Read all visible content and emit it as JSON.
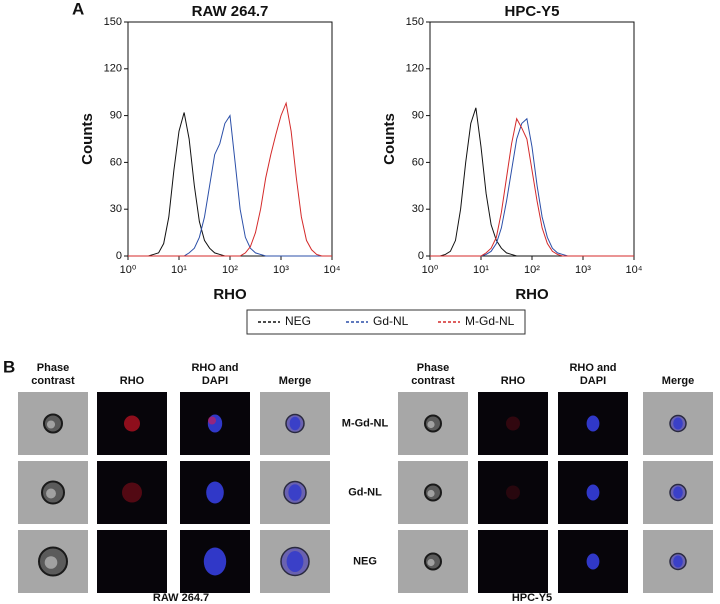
{
  "panel_labels": [
    "A",
    "B"
  ],
  "chart_data": [
    {
      "type": "line",
      "title": "RAW 264.7",
      "xlabel": "RHO",
      "ylabel": "Counts",
      "xscale": "log",
      "xlim": [
        1,
        10000
      ],
      "ylim": [
        0,
        150
      ],
      "xticks": [
        {
          "value": 1,
          "label": "10⁰"
        },
        {
          "value": 10,
          "label": "10¹"
        },
        {
          "value": 100,
          "label": "10²"
        },
        {
          "value": 1000,
          "label": "10³"
        },
        {
          "value": 10000,
          "label": "10⁴"
        }
      ],
      "yticks": [
        0,
        30,
        60,
        90,
        120,
        150
      ],
      "x": [
        1,
        1.26,
        1.58,
        2,
        2.51,
        3.16,
        3.98,
        5.01,
        6.31,
        7.94,
        10,
        12.6,
        15.8,
        20,
        25.1,
        31.6,
        39.8,
        50.1,
        63.1,
        79.4,
        100,
        126,
        158,
        200,
        251,
        316,
        398,
        501,
        631,
        794,
        1000,
        1260,
        1580,
        2000,
        2510,
        3160,
        3980,
        5010,
        6310,
        7940,
        10000
      ],
      "series": [
        {
          "name": "NEG",
          "color": "#111111",
          "values": [
            0,
            0,
            0,
            0,
            0,
            1,
            2,
            8,
            25,
            55,
            80,
            92,
            75,
            45,
            22,
            10,
            5,
            2,
            1,
            0,
            0,
            0,
            0,
            0,
            0,
            0,
            0,
            0,
            0,
            0,
            0,
            0,
            0,
            0,
            0,
            0,
            0,
            0,
            0,
            0,
            0
          ]
        },
        {
          "name": "Gd-NL",
          "color": "#2b4fa8",
          "values": [
            0,
            0,
            0,
            0,
            0,
            0,
            0,
            0,
            0,
            0,
            0,
            0,
            2,
            5,
            12,
            25,
            45,
            65,
            72,
            85,
            90,
            60,
            30,
            12,
            5,
            2,
            1,
            0,
            0,
            0,
            0,
            0,
            0,
            0,
            0,
            0,
            0,
            0,
            0,
            0,
            0
          ]
        },
        {
          "name": "M-Gd-NL",
          "color": "#d42a2a",
          "values": [
            0,
            0,
            0,
            0,
            0,
            0,
            0,
            0,
            0,
            0,
            0,
            0,
            0,
            0,
            0,
            0,
            0,
            0,
            0,
            0,
            0,
            0,
            0,
            2,
            6,
            15,
            30,
            50,
            65,
            78,
            90,
            98,
            80,
            50,
            25,
            10,
            4,
            1,
            0,
            0,
            0
          ]
        }
      ]
    },
    {
      "type": "line",
      "title": "HPC-Y5",
      "xlabel": "RHO",
      "ylabel": "Counts",
      "xscale": "log",
      "xlim": [
        1,
        10000
      ],
      "ylim": [
        0,
        150
      ],
      "xticks": [
        {
          "value": 1,
          "label": "10⁰"
        },
        {
          "value": 10,
          "label": "10¹"
        },
        {
          "value": 100,
          "label": "10²"
        },
        {
          "value": 1000,
          "label": "10³"
        },
        {
          "value": 10000,
          "label": "10⁴"
        }
      ],
      "yticks": [
        0,
        30,
        60,
        90,
        120,
        150
      ],
      "x": [
        1,
        1.26,
        1.58,
        2,
        2.51,
        3.16,
        3.98,
        5.01,
        6.31,
        7.94,
        10,
        12.6,
        15.8,
        20,
        25.1,
        31.6,
        39.8,
        50.1,
        63.1,
        79.4,
        100,
        126,
        158,
        200,
        251,
        316,
        398,
        501,
        631,
        794,
        1000,
        1260,
        1580,
        2000,
        2510,
        3160,
        3980,
        5010,
        6310,
        7940,
        10000
      ],
      "series": [
        {
          "color": "#111111",
          "values": [
            0,
            0,
            0,
            1,
            3,
            10,
            30,
            60,
            85,
            95,
            70,
            40,
            20,
            10,
            5,
            2,
            1,
            0,
            0,
            0,
            0,
            0,
            0,
            0,
            0,
            0,
            0,
            0,
            0,
            0,
            0,
            0,
            0,
            0,
            0,
            0,
            0,
            0,
            0,
            0,
            0
          ]
        },
        {
          "color": "#2b4fa8",
          "values": [
            0,
            0,
            0,
            0,
            0,
            0,
            0,
            0,
            0,
            0,
            0,
            1,
            3,
            8,
            18,
            35,
            55,
            75,
            85,
            88,
            70,
            45,
            25,
            12,
            5,
            2,
            1,
            0,
            0,
            0,
            0,
            0,
            0,
            0,
            0,
            0,
            0,
            0,
            0,
            0,
            0
          ]
        },
        {
          "color": "#d42a2a",
          "values": [
            0,
            0,
            0,
            0,
            0,
            0,
            0,
            0,
            0,
            0,
            0,
            2,
            5,
            12,
            28,
            50,
            72,
            88,
            82,
            75,
            55,
            35,
            18,
            8,
            3,
            1,
            0,
            0,
            0,
            0,
            0,
            0,
            0,
            0,
            0,
            0,
            0,
            0,
            0,
            0,
            0
          ]
        }
      ]
    }
  ],
  "panel_b": {
    "columns": [
      "Phase contrast",
      "RHO",
      "RHO and DAPI",
      "Merge"
    ],
    "rows": [
      "M-Gd-NL",
      "Gd-NL",
      "NEG"
    ],
    "groups": [
      "RAW 264.7",
      "HPC-Y5"
    ]
  }
}
